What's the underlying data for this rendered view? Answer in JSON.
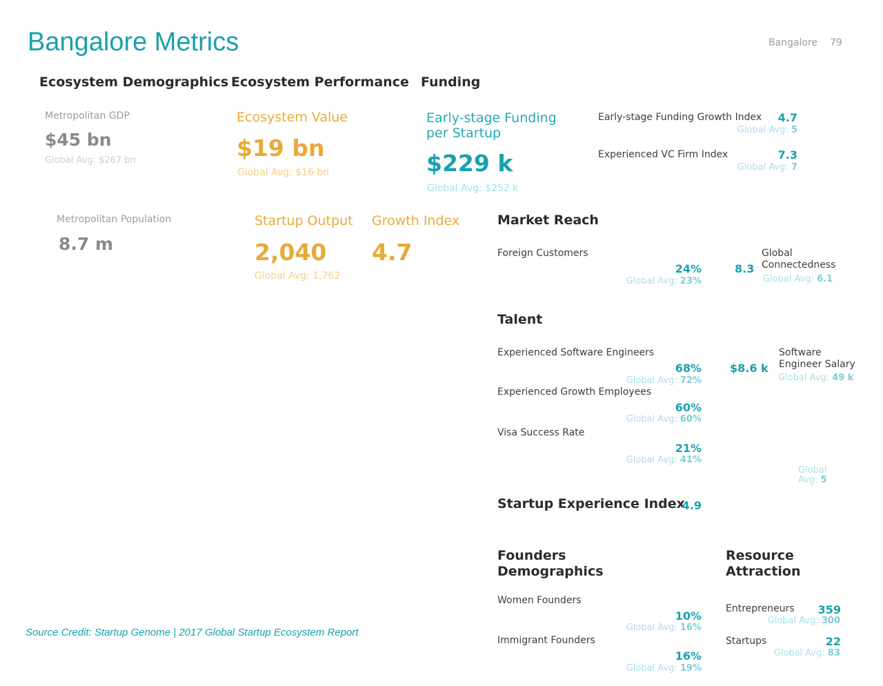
{
  "page": {
    "title": "Bangalore Metrics",
    "header_city": "Bangalore",
    "page_number": "79"
  },
  "demographics": {
    "heading": "Ecosystem Demographics",
    "gdp_label": "Metropolitan GDP",
    "gdp_value": "$45 bn",
    "gdp_avg": "Global Avg: $267 bn",
    "population_label": "Metropolitan Population",
    "population_value": "8.7 m"
  },
  "performance": {
    "heading": "Ecosystem Performance",
    "value_label": "Ecosystem Value",
    "value_value": "$19 bn",
    "value_avg": "Global Avg: $16 bn",
    "output_label": "Startup Output",
    "output_value": "2,040",
    "output_avg": "Global Avg: 1,762",
    "growth_label": "Growth Index",
    "growth_value": "4.7"
  },
  "funding": {
    "heading": "Funding",
    "early_label_line1": "Early-stage Funding",
    "early_label_line2": "per Startup",
    "early_value": "$229 k",
    "early_avg": "Global Avg: $252 k",
    "growth_index_label": "Early-stage Funding Growth Index",
    "growth_index_value": "4.7",
    "growth_index_avg_prefix": "Global Avg:",
    "growth_index_avg_value": "5",
    "vc_label": "Experienced VC Firm Index",
    "vc_value": "7.3",
    "vc_avg_prefix": "Global Avg:",
    "vc_avg_value": "7"
  },
  "market_reach": {
    "heading": "Market Reach",
    "foreign_label": "Foreign Customers",
    "foreign_value": "24%",
    "foreign_avg_prefix": "Global Avg:",
    "foreign_avg_value": "23%",
    "connect_value": "8.3",
    "connect_label_line1": "Global",
    "connect_label_line2": "Connectedness",
    "connect_avg_prefix": "Global Avg:",
    "connect_avg_value": "6.1"
  },
  "talent": {
    "heading": "Talent",
    "items": [
      {
        "label": "Experienced Software Engineers",
        "value": "68%",
        "avg_prefix": "Global Avg:",
        "avg_value": "72%"
      },
      {
        "label": "Experienced Growth Employees",
        "value": "60%",
        "avg_prefix": "Global Avg:",
        "avg_value": "60%"
      },
      {
        "label": "Visa Success Rate",
        "value": "21%",
        "avg_prefix": "Global Avg:",
        "avg_value": "41%"
      }
    ],
    "salary_value": "$8.6 k",
    "salary_label_line1": "Software",
    "salary_label_line2": "Engineer Salary",
    "salary_avg_prefix": "Global Avg:",
    "salary_avg_value": "49 k",
    "sei_avg_line1": "Global",
    "sei_avg_line2_prefix": "Avg:",
    "sei_avg_value": "5"
  },
  "startup_experience": {
    "label": "Startup Experience Index",
    "value": "4.9"
  },
  "founders": {
    "heading_line1": "Founders",
    "heading_line2": "Demographics",
    "items": [
      {
        "label": "Women Founders",
        "value": "10%",
        "avg_prefix": "Global Avg:",
        "avg_value": "16%"
      },
      {
        "label": "Immigrant Founders",
        "value": "16%",
        "avg_prefix": "Global Avg:",
        "avg_value": "19%"
      }
    ]
  },
  "resources": {
    "heading_line1": "Resource",
    "heading_line2": "Attraction",
    "items": [
      {
        "label": "Entrepreneurs",
        "value": "359",
        "avg_prefix": "Global Avg:",
        "avg_value": "300"
      },
      {
        "label": "Startups",
        "value": "22",
        "avg_prefix": "Global Avg:",
        "avg_value": "83"
      }
    ]
  },
  "footer": {
    "credit": "Source Credit: Startup Genome | 2017 Global Startup Ecosystem Report"
  },
  "colors": {
    "teal": "#1aa0ad",
    "orange": "#e8aa3a",
    "gray": "#8a8a8a"
  }
}
